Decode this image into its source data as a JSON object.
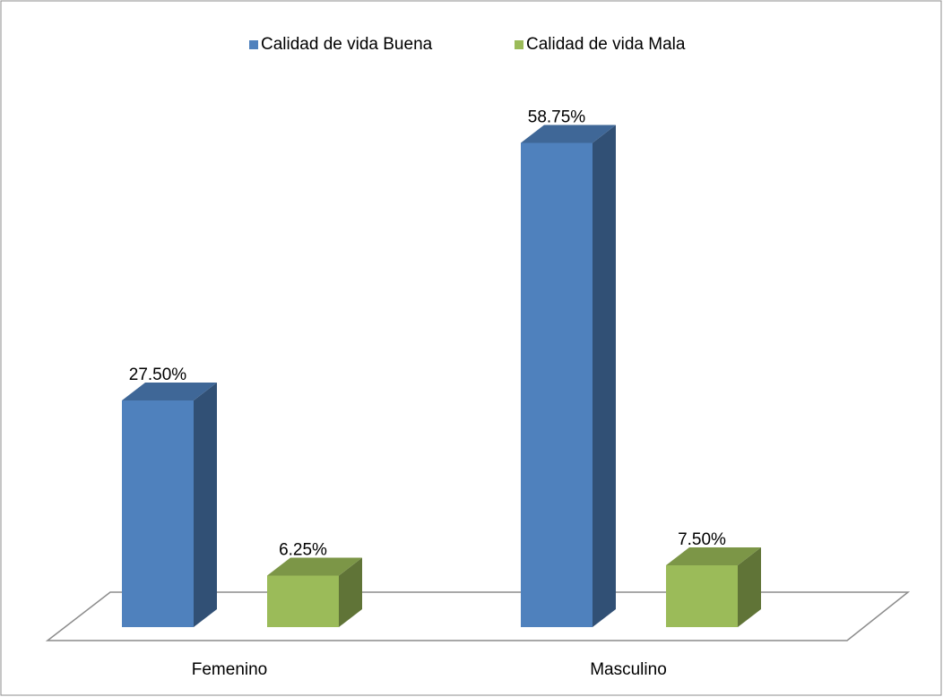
{
  "chart_data": {
    "type": "bar3d",
    "categories": [
      "Femenino",
      "Masculino"
    ],
    "series": [
      {
        "name": "Calidad de vida Buena",
        "color": "#4f81bd",
        "values": [
          27.5,
          58.75
        ],
        "value_labels": [
          "27.50%",
          "58.75%"
        ]
      },
      {
        "name": "Calidad de vida Mala",
        "color": "#9bbb59",
        "values": [
          6.25,
          7.5
        ],
        "value_labels": [
          "6.25%",
          "7.50%"
        ]
      }
    ],
    "legend": "top"
  }
}
